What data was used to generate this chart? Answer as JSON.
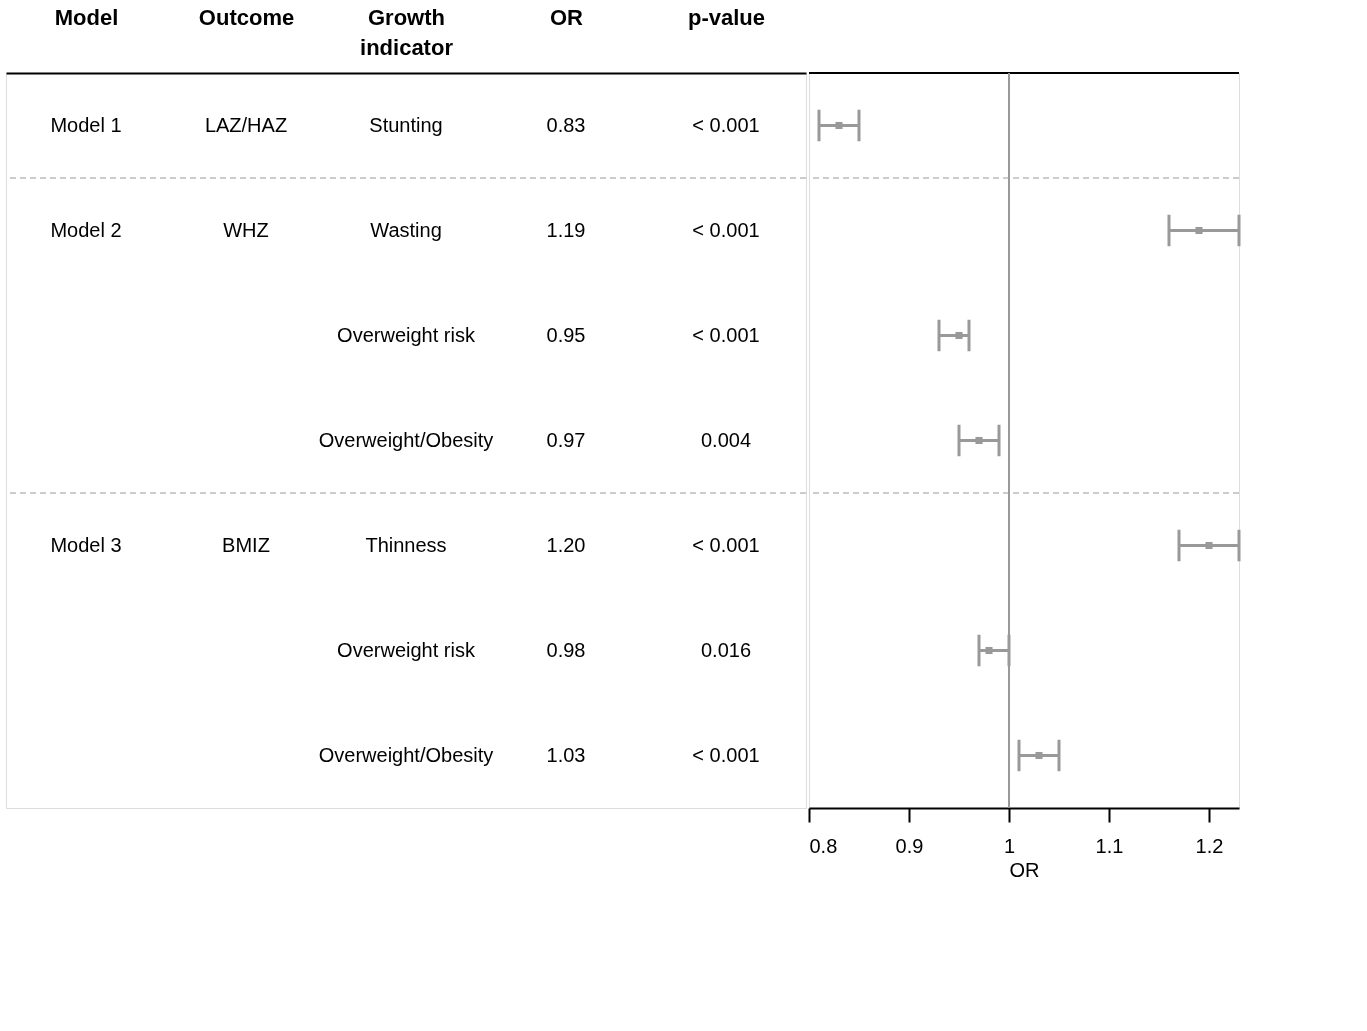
{
  "chart_data": [
    {
      "type": "other",
      "categories": [
        "Model",
        "Outcome",
        "Growth indicator",
        "OR",
        "p-value"
      ],
      "cell_labels": [
        [
          "Model 1",
          "LAZ/HAZ",
          "Stunting",
          "0.83",
          "< 0.001"
        ],
        [
          "Model 2",
          "WHZ",
          "Wasting",
          "1.19",
          "< 0.001"
        ],
        [
          null,
          null,
          "Overweight risk",
          "0.95",
          "< 0.001"
        ],
        [
          null,
          null,
          "Overweight/Obesity",
          "0.97",
          "0.004"
        ],
        [
          "Model 3",
          "BMIZ",
          "Thinness",
          "1.20",
          "< 0.001"
        ],
        [
          null,
          null,
          "Overweight risk",
          "0.98",
          "0.016"
        ],
        [
          null,
          null,
          "Overweight/Obesity",
          "1.03",
          "< 0.001"
        ]
      ]
    },
    {
      "type": "scatter",
      "categories": [
        null,
        null,
        null,
        null,
        null,
        null,
        null
      ],
      "values": [
        0.83,
        1.19,
        0.95,
        0.97,
        1.2,
        0.98,
        1.03
      ],
      "errors": [
        [
          0.81,
          0.85
        ],
        [
          1.16,
          1.23
        ],
        [
          0.93,
          0.96
        ],
        [
          0.95,
          0.99
        ],
        [
          1.17,
          1.23
        ],
        [
          0.97,
          1.0
        ],
        [
          1.01,
          1.05
        ]
      ],
      "color": "#999999",
      "marker": "square",
      "orientation": "horizontal",
      "xlim": [
        0.8,
        1.23
      ],
      "xticks": [
        0.8,
        0.9,
        1,
        1.1,
        1.2
      ],
      "xlabel": "OR",
      "ref_lines": [
        {
          "axis": "x",
          "value": 1,
          "color": "#999999"
        }
      ],
      "tick_labels": "x",
      "grid": false
    }
  ]
}
